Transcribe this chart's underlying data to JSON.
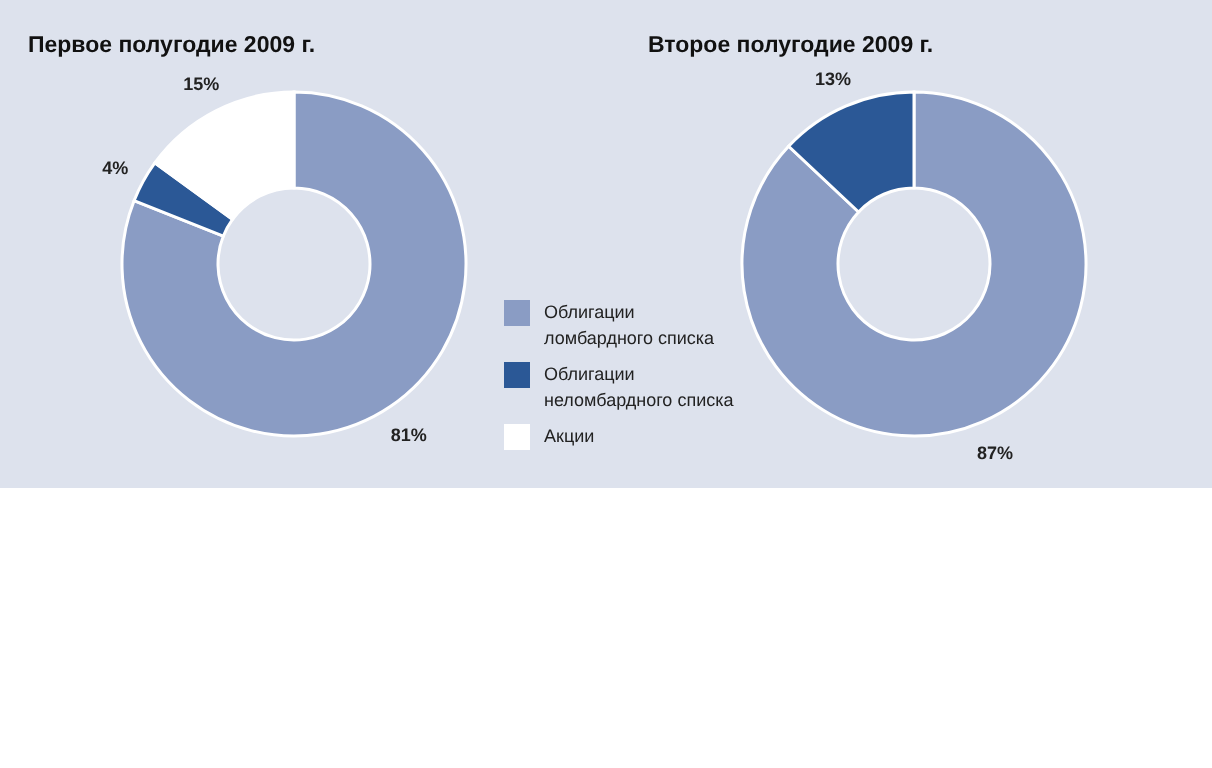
{
  "chart_data": [
    {
      "type": "donut",
      "title": "Первое полугодие 2009 г.",
      "categories": [
        "Облигации ломбардного списка",
        "Облигации неломбардного списка",
        "Акции"
      ],
      "values": [
        81,
        4,
        15
      ],
      "colors": [
        "#8a9cc4",
        "#2b5896",
        "#ffffff"
      ],
      "value_labels": [
        "81%",
        "4%",
        "15%"
      ],
      "legend": "right"
    },
    {
      "type": "donut",
      "title": "Второе полугодие 2009 г.",
      "categories": [
        null,
        null
      ],
      "values": [
        87,
        13
      ],
      "colors": [
        "#8a9cc4",
        "#2b5896"
      ],
      "value_labels": [
        "87%",
        "13%"
      ]
    }
  ]
}
